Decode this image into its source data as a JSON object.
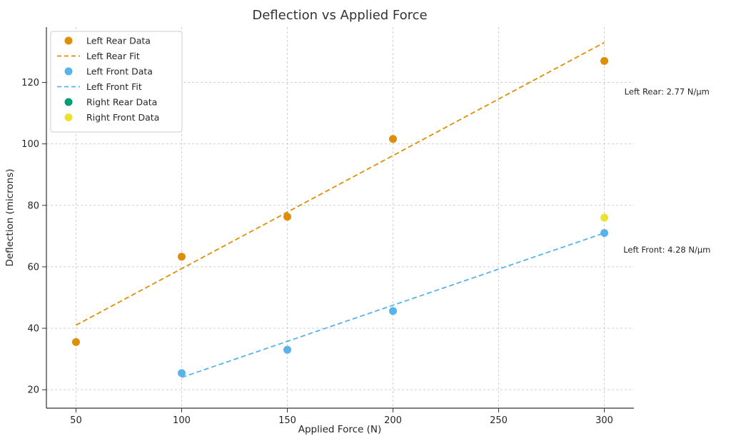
{
  "chart_data": {
    "type": "scatter",
    "title": "Deflection vs Applied Force",
    "xlabel": "Applied Force (N)",
    "ylabel": "Deflection (microns)",
    "xlim": [
      36,
      314
    ],
    "ylim": [
      14,
      138
    ],
    "xticks": [
      50,
      100,
      150,
      200,
      250,
      300
    ],
    "yticks": [
      20,
      40,
      60,
      80,
      100,
      120
    ],
    "grid": true,
    "legend_position": "upper left",
    "colors": {
      "left_rear": "#DE8F05",
      "left_front": "#56B4E9",
      "right_rear": "#029E73",
      "right_front": "#ECE133",
      "grid": "#cfcfcf",
      "axis": "#333333",
      "text": "#262626",
      "legend_border": "#cccccc",
      "background": "#ffffff"
    },
    "series": [
      {
        "name": "Left Rear Data",
        "kind": "scatter",
        "color": "#DE8F05",
        "x": [
          50,
          100,
          150,
          200,
          300
        ],
        "y": [
          35.5,
          63.3,
          76.3,
          101.6,
          127.0
        ]
      },
      {
        "name": "Left Rear Fit",
        "kind": "line",
        "style": "dashed",
        "color": "#DE8F05",
        "x": [
          50,
          300
        ],
        "y": [
          41.0,
          133.0
        ]
      },
      {
        "name": "Left Front Data",
        "kind": "scatter",
        "color": "#56B4E9",
        "x": [
          100,
          150,
          200,
          300
        ],
        "y": [
          25.4,
          33.0,
          45.6,
          71.0
        ]
      },
      {
        "name": "Left Front Fit",
        "kind": "line",
        "style": "dashed",
        "color": "#56B4E9",
        "x": [
          100,
          300
        ],
        "y": [
          24.0,
          71.0
        ]
      },
      {
        "name": "Right Rear Data",
        "kind": "scatter",
        "color": "#029E73",
        "x": [],
        "y": []
      },
      {
        "name": "Right Front Data",
        "kind": "scatter",
        "color": "#ECE133",
        "x": [
          300
        ],
        "y": [
          76.0
        ]
      }
    ],
    "annotations": [
      {
        "text": "Left Rear: 2.77 N/μm",
        "x": 309.5,
        "y": 117.0
      },
      {
        "text": "Left Front: 4.28 N/μm",
        "x": 309.0,
        "y": 65.5
      }
    ]
  }
}
